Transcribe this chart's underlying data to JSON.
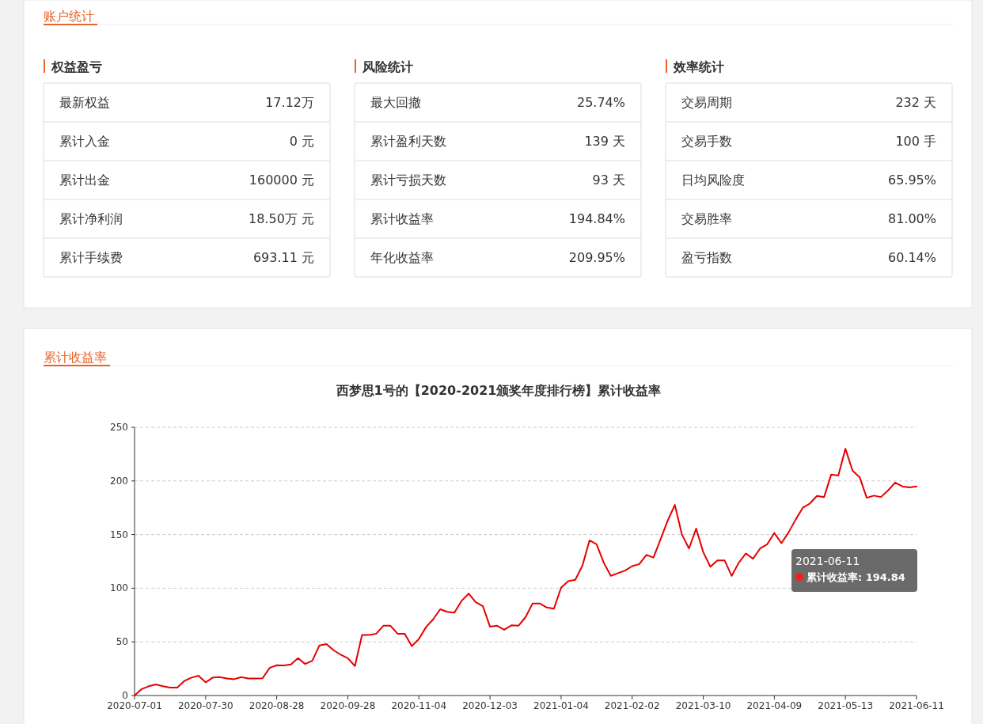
{
  "chart_data": [
    {
      "type": "other",
      "title": "账户统计",
      "annotations": [
        "权益盈亏",
        "最新权益",
        "17.12万",
        "累计入金",
        "0 元",
        "累计出金",
        "160000 元",
        "累计净利润",
        "18.50万 元",
        "累计手续费",
        "693.11 元",
        "风险统计",
        "最大回撤",
        "25.74%",
        "累计盈利天数",
        "139 天",
        "累计亏损天数",
        "93 天",
        "累计收益率",
        "194.84%",
        "年化收益率",
        "209.95%",
        "效率统计",
        "交易周期",
        "232 天",
        "交易手数",
        "100 手",
        "日均风险度",
        "65.95%",
        "交易胜率",
        "81.00%",
        "盈亏指数",
        "60.14%"
      ]
    },
    {
      "type": "line",
      "subtitle": "累计收益率",
      "title": "西梦思1号的【2020-2021颁奖年度排行榜】累计收益率",
      "categories": [
        "2020-07-01",
        null,
        null,
        null,
        null,
        null,
        null,
        null,
        null,
        null,
        "2020-07-30",
        null,
        null,
        null,
        null,
        null,
        null,
        null,
        null,
        null,
        "2020-08-28",
        null,
        null,
        null,
        null,
        null,
        null,
        null,
        null,
        null,
        "2020-09-28",
        null,
        null,
        null,
        null,
        null,
        null,
        null,
        null,
        null,
        "2020-11-04",
        null,
        null,
        null,
        null,
        null,
        null,
        null,
        null,
        null,
        "2020-12-03",
        null,
        null,
        null,
        null,
        null,
        null,
        null,
        null,
        null,
        "2021-01-04",
        null,
        null,
        null,
        null,
        null,
        null,
        null,
        null,
        null,
        "2021-02-02",
        null,
        null,
        null,
        null,
        null,
        null,
        null,
        null,
        null,
        "2021-03-10",
        null,
        null,
        null,
        null,
        null,
        null,
        null,
        null,
        null,
        "2021-04-09",
        null,
        null,
        null,
        null,
        null,
        null,
        null,
        null,
        null,
        "2021-05-13",
        null,
        null,
        null,
        null,
        null,
        null,
        null,
        null,
        null,
        "2021-06-11"
      ],
      "series": [
        {
          "color": "#e60000",
          "values": [
            0,
            6,
            8.6,
            10.3,
            8.6,
            7.4,
            7.4,
            13.5,
            16.7,
            18.4,
            12.3,
            16.7,
            17.2,
            15.9,
            15.2,
            17.2,
            15.9,
            15.9,
            16,
            25.7,
            28.2,
            28,
            29,
            34.8,
            29.4,
            32.4,
            46.6,
            48,
            42.2,
            38,
            34.8,
            27.5,
            56.4,
            56.4,
            57.6,
            65,
            65,
            57.6,
            57.6,
            46,
            52.7,
            63.7,
            71,
            80.4,
            78,
            77.2,
            88.2,
            95,
            87,
            83.3,
            64.2,
            65,
            61.3,
            65.4,
            65,
            73,
            85.8,
            85.8,
            82,
            81,
            100.5,
            106.6,
            107.8,
            121,
            144.6,
            141,
            123.8,
            111.5,
            114,
            116.4,
            120.6,
            122.5,
            131,
            128.6,
            145.8,
            163,
            177.7,
            150,
            137,
            155.6,
            133.6,
            120,
            126,
            126,
            111.5,
            123.8,
            132.4,
            127.5,
            137,
            141,
            151.5,
            142,
            152,
            164,
            175,
            179,
            186,
            185,
            206,
            205,
            230,
            209.6,
            203.4,
            184.3,
            186.3,
            185,
            191.2,
            198.5,
            194.9,
            194,
            194.84
          ]
        }
      ],
      "ylim": [
        0,
        250
      ],
      "yticks": [
        0,
        50,
        100,
        150,
        200,
        250
      ],
      "grid": "y",
      "line_style": "solid",
      "annotations": [
        "2021-06-11\n累计收益率: 194.84"
      ]
    }
  ]
}
